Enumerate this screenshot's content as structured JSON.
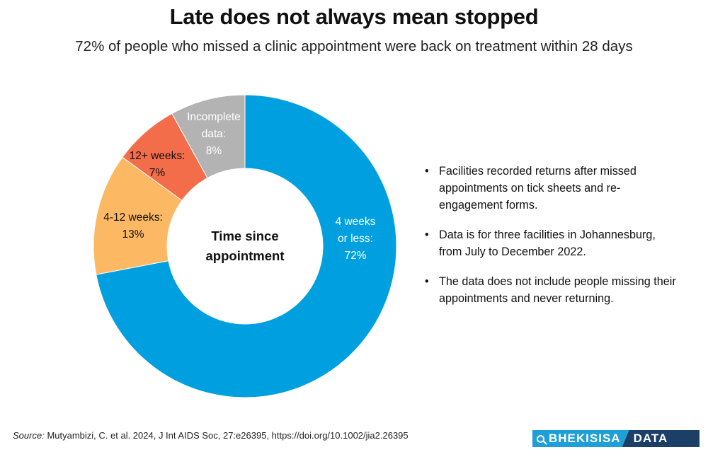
{
  "header": {
    "title": "Late does not always mean stopped",
    "subtitle": "72% of people who missed a clinic appointment were back on treatment within 28 days"
  },
  "chart_data": {
    "type": "pie",
    "variant": "donut",
    "center_label": [
      "Time since",
      "appointment"
    ],
    "slices": [
      {
        "name": "4 weeks or less",
        "value": 72,
        "label_lines": [
          "4 weeks",
          "or less:",
          "72%"
        ],
        "color": "#00a0e0",
        "text_color": "#ffffff"
      },
      {
        "name": "4-12 weeks",
        "value": 13,
        "label_lines": [
          "4-12 weeks:",
          "13%"
        ],
        "color": "#fdb863",
        "text_color": "#111111"
      },
      {
        "name": "12+ weeks",
        "value": 7,
        "label_lines": [
          "12+ weeks:",
          "7%"
        ],
        "color": "#f46d4a",
        "text_color": "#111111"
      },
      {
        "name": "Incomplete data",
        "value": 8,
        "label_lines": [
          "Incomplete",
          "data:",
          "8%"
        ],
        "color": "#b3b3b3",
        "text_color": "#ffffff"
      }
    ]
  },
  "notes": [
    "Facilities recorded returns after missed appointments on tick sheets and re-engagement forms.",
    "Data is for three facilities in Johannesburg, from July to December 2022.",
    "The data does not include people missing their appointments and never returning."
  ],
  "source": {
    "prefix": "Source:",
    "text": "Mutyambizi, C. et al. 2024, J Int AIDS Soc, 27:e26395, https://doi.org/10.1002/jia2.26395"
  },
  "logo": {
    "left": "BHEKISISA",
    "right": "DATA"
  }
}
